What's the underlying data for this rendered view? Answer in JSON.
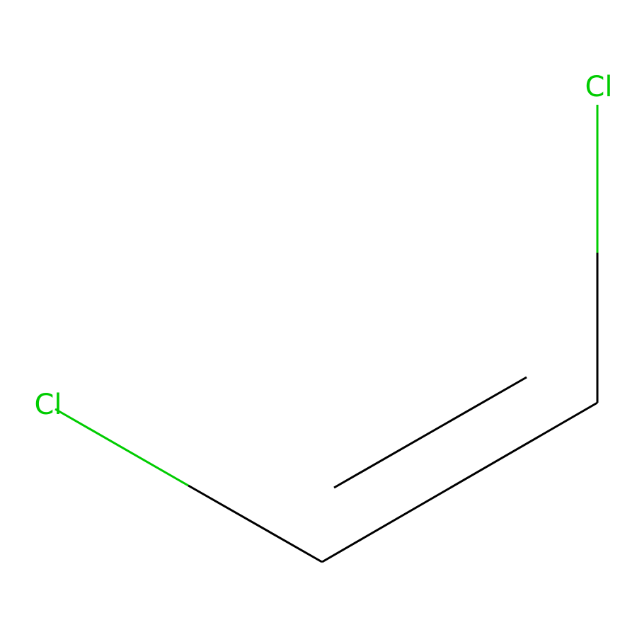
{
  "molecule": {
    "atoms": [
      {
        "id": "cl1",
        "symbol": "Cl",
        "color": "#00CC00"
      },
      {
        "id": "c1",
        "symbol": "C",
        "color": "#000000"
      },
      {
        "id": "c2",
        "symbol": "C",
        "color": "#000000"
      },
      {
        "id": "cl2",
        "symbol": "Cl",
        "color": "#00CC00"
      }
    ],
    "bonds": [
      {
        "from": "cl1",
        "to": "c1",
        "order": 1
      },
      {
        "from": "c1",
        "to": "c2",
        "order": 2
      },
      {
        "from": "c2",
        "to": "cl2",
        "order": 1
      }
    ]
  },
  "labels": {
    "left_chlorine": "Cl",
    "top_chlorine": "Cl"
  },
  "colors": {
    "chlorine": "#00CC00",
    "carbon_bond": "#000000",
    "background": "#FFFFFF"
  }
}
